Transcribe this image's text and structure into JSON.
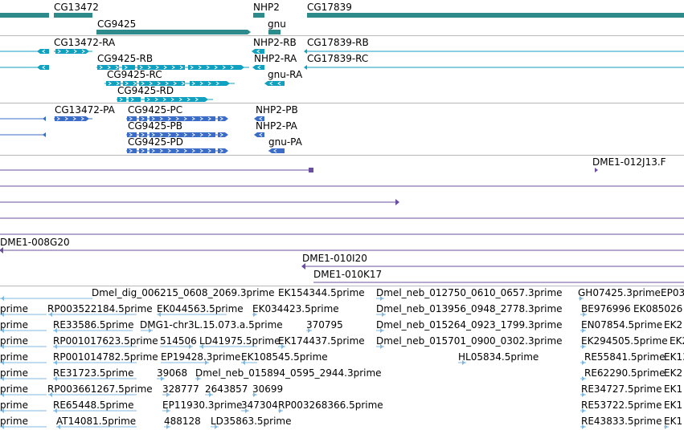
{
  "colors": {
    "gene": "#2e8b8b",
    "mrna": "#10a0c0",
    "protein": "#3a6cc8",
    "clone": "#6a4fa0",
    "est": "#80b8e0",
    "separator": "#b8b8b8"
  },
  "gene_track": {
    "labels": [
      "CG13472",
      "CG9425",
      "NHP2",
      "gnu",
      "CG17839"
    ]
  },
  "mrna_track": {
    "labels": [
      "CG13472-RA",
      "NHP2-RB",
      "CG17839-RB",
      "CG9425-RB",
      "NHP2-RA",
      "CG17839-RC",
      "CG9425-RC",
      "gnu-RA",
      "CG9425-RD"
    ]
  },
  "protein_track": {
    "labels": [
      "CG13472-PA",
      "CG9425-PC",
      "NHP2-PB",
      "CG9425-PB",
      "NHP2-PA",
      "CG9425-PD",
      "gnu-PA"
    ]
  },
  "clone_track": {
    "labels": [
      "DME1-012J13.F",
      "DME1-008G20",
      "DME1-010I20",
      "DME1-010K17"
    ]
  },
  "est_track": {
    "labels": [
      "Dmel_dig_006215_0608_2069.3prime",
      "EK154344.5prime",
      "Dmel_neb_012750_0610_0657.3prime",
      "GH07425.3prime",
      "EP03",
      "prime",
      "RP003522184.5prime",
      "EK044563.5prime",
      "EK034423.5prime",
      "Dmel_neb_013956_0948_2778.3prime",
      "BE976996",
      "EK085026",
      "prime",
      "RE33586.5prime",
      "DMG1-chr3L.15.073.a.5prime",
      "370795",
      "Dmel_neb_015264_0923_1799.3prime",
      "EN07854.5prime",
      "EK2",
      "prime",
      "RP001017623.5prime",
      "514506",
      "LD41975.5prime",
      "EK174437.5prime",
      "Dmel_neb_015701_0900_0302.3prime",
      "EK294505.5prime",
      "EK2",
      "prime",
      "RP001014782.5prime",
      "EP19428.3prime",
      "EK108545.5prime",
      "HL05834.5prime",
      "RE55841.5prime",
      "EK13",
      "prime",
      "RE31723.5prime",
      "39068",
      "Dmel_neb_015894_0595_2944.3prime",
      "RE62290.5prime",
      "EK2",
      "prime",
      "RP003661267.5prime",
      "328777",
      "2643857",
      "30699",
      "RE34727.5prime",
      "EK1",
      "prime",
      "RE65448.5prime",
      "EP11930.3prime",
      "347304",
      "RP003268366.5prime",
      "RE53722.5prime",
      "EK1",
      "prime",
      "AT14081.5prime",
      "488128",
      "LD35863.5prime",
      "RE43833.5prime",
      "EK1"
    ]
  }
}
